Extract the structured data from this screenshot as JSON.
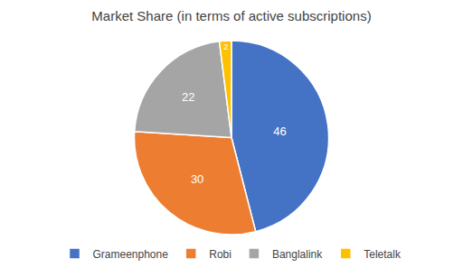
{
  "chart_data": {
    "type": "pie",
    "title": "Market Share (in terms of active subscriptions)",
    "categories": [
      "Grameenphone",
      "Robi",
      "Banglalink",
      "Teletalk"
    ],
    "values": [
      46,
      30,
      22,
      2
    ],
    "colors": [
      "#4472C4",
      "#ED7D31",
      "#A5A5A5",
      "#FFC000"
    ],
    "data_labels": true,
    "legend": "bottom"
  }
}
